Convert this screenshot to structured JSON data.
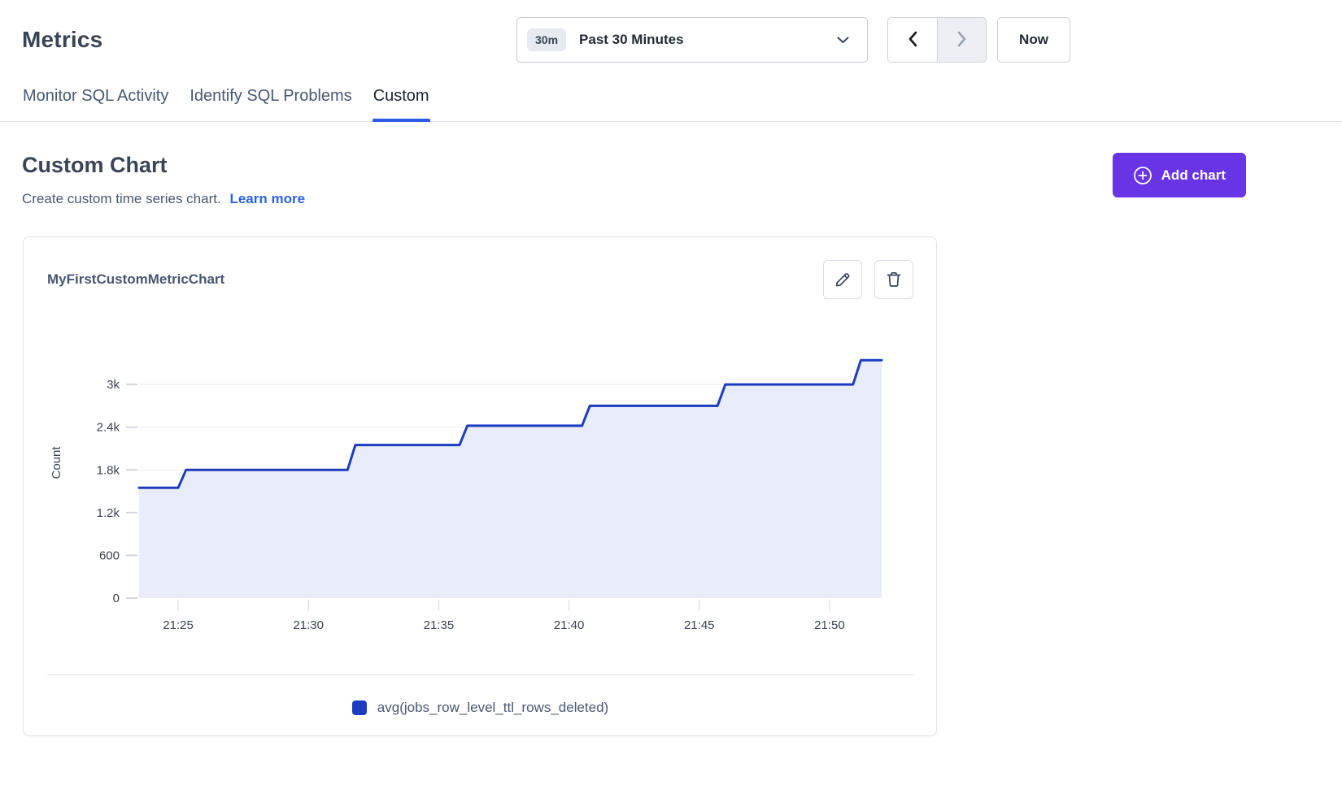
{
  "header": {
    "title": "Metrics"
  },
  "time_controls": {
    "range_badge": "30m",
    "range_label": "Past 30 Minutes",
    "now_label": "Now",
    "next_disabled": true,
    "icons": {
      "dropdown": "chevron-down",
      "previous": "chevron-left",
      "next": "chevron-right"
    }
  },
  "tabs": [
    {
      "label": "Monitor SQL Activity",
      "active": false
    },
    {
      "label": "Identify SQL Problems",
      "active": false
    },
    {
      "label": "Custom",
      "active": true
    }
  ],
  "custom_section": {
    "title": "Custom Chart",
    "subtitle": "Create custom time series chart.",
    "learn_more_label": "Learn more",
    "add_chart_label": "Add chart",
    "add_chart_icon": "plus-circle"
  },
  "chart_card": {
    "title": "MyFirstCustomMetricChart",
    "actions": [
      {
        "name": "edit",
        "icon": "pencil"
      },
      {
        "name": "delete",
        "icon": "trash"
      }
    ]
  },
  "colors": {
    "accent_purple": "#6933e6",
    "link_blue": "#2a63e5",
    "tab_active_underline": "#2a5ce6",
    "series_line": "#1d3dc0",
    "series_fill": "#e9edfb"
  },
  "chart_data": {
    "type": "area",
    "subtype": "step",
    "title": "MyFirstCustomMetricChart",
    "xlabel": "",
    "ylabel": "Count",
    "grid": "horizontal",
    "legend_position": "bottom",
    "legend": [
      {
        "label": "avg(jobs_row_level_ttl_rows_deleted)",
        "color": "#1d3dc0"
      }
    ],
    "x_time_window": [
      "21:23",
      "21:52"
    ],
    "xlim_minutes": [
      23.5,
      52
    ],
    "ylim": [
      0,
      3800
    ],
    "yticks": [
      {
        "value": 0,
        "label": "0"
      },
      {
        "value": 600,
        "label": "600"
      },
      {
        "value": 1200,
        "label": "1.2k"
      },
      {
        "value": 1800,
        "label": "1.8k"
      },
      {
        "value": 2400,
        "label": "2.4k"
      },
      {
        "value": 3000,
        "label": "3k"
      }
    ],
    "xticks": [
      {
        "minute": 25,
        "label": "21:25"
      },
      {
        "minute": 30,
        "label": "21:30"
      },
      {
        "minute": 35,
        "label": "21:35"
      },
      {
        "minute": 40,
        "label": "21:40"
      },
      {
        "minute": 45,
        "label": "21:45"
      },
      {
        "minute": 50,
        "label": "21:50"
      }
    ],
    "series": [
      {
        "name": "avg(jobs_row_level_ttl_rows_deleted)",
        "color": "#1d3dc0",
        "fill": "#e9edfb",
        "plateau_values": [
          1550,
          1800,
          2150,
          2420,
          2700,
          3000,
          3340
        ],
        "points": [
          [
            23.5,
            1550
          ],
          [
            25.0,
            1550
          ],
          [
            25.3,
            1800
          ],
          [
            31.5,
            1800
          ],
          [
            31.8,
            2150
          ],
          [
            35.8,
            2150
          ],
          [
            36.1,
            2420
          ],
          [
            40.5,
            2420
          ],
          [
            40.8,
            2700
          ],
          [
            45.7,
            2700
          ],
          [
            46.0,
            3000
          ],
          [
            50.9,
            3000
          ],
          [
            51.2,
            3340
          ],
          [
            52.0,
            3340
          ]
        ]
      }
    ]
  }
}
